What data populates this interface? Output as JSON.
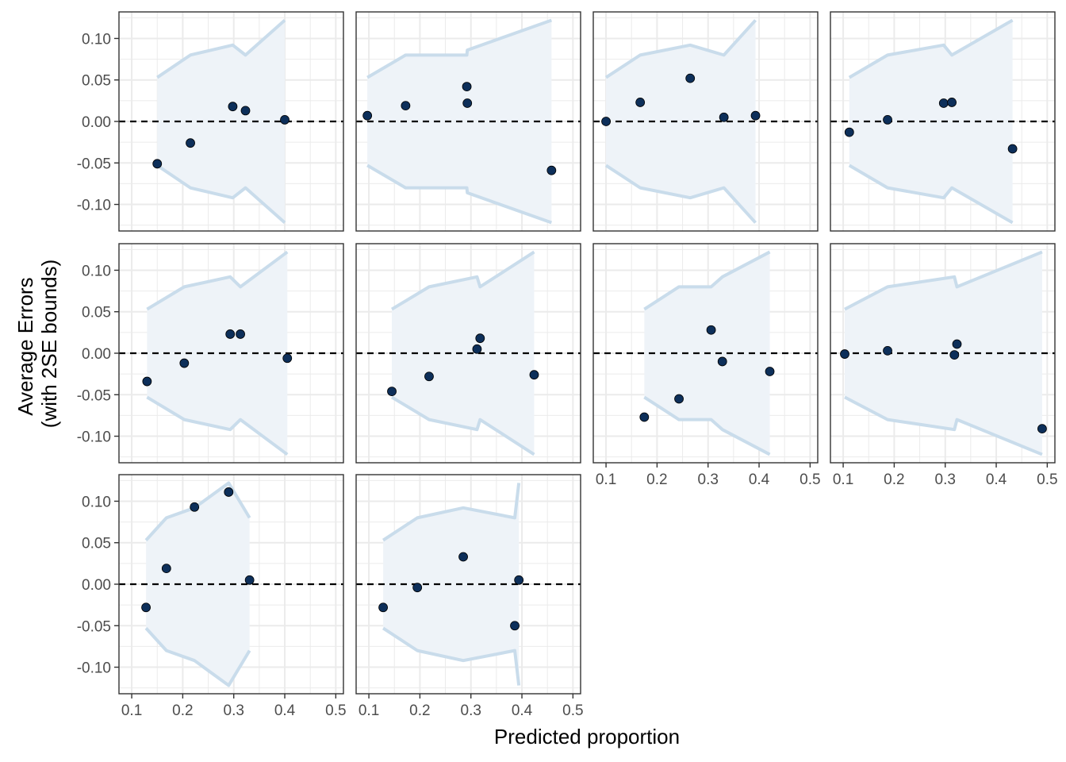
{
  "chart_data": {
    "type": "scatter",
    "xlabel": "Predicted proportion",
    "ylabel": [
      "Average Errors",
      "(with 2SE bounds)"
    ],
    "xlim": [
      0.075,
      0.515
    ],
    "ylim": [
      -0.132,
      0.132
    ],
    "x_ticks": [
      0.1,
      0.2,
      0.3,
      0.4,
      0.5
    ],
    "x_tick_labels": [
      "0.1",
      "0.2",
      "0.3",
      "0.4",
      "0.5"
    ],
    "y_ticks": [
      -0.1,
      -0.05,
      0.0,
      0.05,
      0.1
    ],
    "y_tick_labels": [
      "-0.10",
      "-0.05",
      "0.00",
      "0.05",
      "0.10"
    ],
    "reference_line": 0,
    "grid": true,
    "colors": {
      "points": "#0d2f5a",
      "band_line": "#c9dceb",
      "band_fill": "#eef3f8",
      "reference": "#000000",
      "grid": "#ebebeb",
      "panel_border": "#333333"
    },
    "panels": [
      {
        "points": [
          [
            0.15,
            -0.051
          ],
          [
            0.215,
            -0.026
          ],
          [
            0.298,
            0.018
          ],
          [
            0.323,
            0.013
          ],
          [
            0.4,
            0.002
          ]
        ],
        "band": [
          [
            0.15,
            0.053
          ],
          [
            0.215,
            0.08
          ],
          [
            0.298,
            0.092
          ],
          [
            0.323,
            0.08
          ],
          [
            0.4,
            0.122
          ]
        ]
      },
      {
        "points": [
          [
            0.097,
            0.007
          ],
          [
            0.172,
            0.019
          ],
          [
            0.292,
            0.042
          ],
          [
            0.293,
            0.022
          ],
          [
            0.458,
            -0.059
          ]
        ],
        "band": [
          [
            0.097,
            0.053
          ],
          [
            0.172,
            0.08
          ],
          [
            0.292,
            0.08
          ],
          [
            0.293,
            0.086
          ],
          [
            0.458,
            0.122
          ]
        ]
      },
      {
        "points": [
          [
            0.1,
            0.0
          ],
          [
            0.167,
            0.023
          ],
          [
            0.265,
            0.052
          ],
          [
            0.331,
            0.005
          ],
          [
            0.393,
            0.007
          ]
        ],
        "band": [
          [
            0.1,
            0.053
          ],
          [
            0.167,
            0.08
          ],
          [
            0.265,
            0.092
          ],
          [
            0.331,
            0.08
          ],
          [
            0.393,
            0.122
          ]
        ]
      },
      {
        "points": [
          [
            0.112,
            -0.013
          ],
          [
            0.187,
            0.002
          ],
          [
            0.297,
            0.022
          ],
          [
            0.313,
            0.023
          ],
          [
            0.432,
            -0.033
          ]
        ],
        "band": [
          [
            0.112,
            0.053
          ],
          [
            0.187,
            0.08
          ],
          [
            0.297,
            0.092
          ],
          [
            0.313,
            0.08
          ],
          [
            0.432,
            0.122
          ]
        ]
      },
      {
        "points": [
          [
            0.13,
            -0.034
          ],
          [
            0.203,
            -0.012
          ],
          [
            0.293,
            0.023
          ],
          [
            0.313,
            0.023
          ],
          [
            0.405,
            -0.006
          ]
        ],
        "band": [
          [
            0.13,
            0.053
          ],
          [
            0.203,
            0.08
          ],
          [
            0.293,
            0.092
          ],
          [
            0.313,
            0.08
          ],
          [
            0.405,
            0.122
          ]
        ]
      },
      {
        "points": [
          [
            0.145,
            -0.046
          ],
          [
            0.218,
            -0.028
          ],
          [
            0.312,
            0.005
          ],
          [
            0.318,
            0.018
          ],
          [
            0.424,
            -0.026
          ]
        ],
        "band": [
          [
            0.145,
            0.053
          ],
          [
            0.218,
            0.08
          ],
          [
            0.312,
            0.092
          ],
          [
            0.318,
            0.08
          ],
          [
            0.424,
            0.122
          ]
        ]
      },
      {
        "points": [
          [
            0.175,
            -0.077
          ],
          [
            0.243,
            -0.055
          ],
          [
            0.306,
            0.028
          ],
          [
            0.328,
            -0.01
          ],
          [
            0.421,
            -0.022
          ]
        ],
        "band": [
          [
            0.175,
            0.053
          ],
          [
            0.243,
            0.08
          ],
          [
            0.306,
            0.08
          ],
          [
            0.328,
            0.092
          ],
          [
            0.421,
            0.122
          ]
        ]
      },
      {
        "points": [
          [
            0.103,
            -0.001
          ],
          [
            0.187,
            0.003
          ],
          [
            0.318,
            -0.002
          ],
          [
            0.323,
            0.011
          ],
          [
            0.49,
            -0.091
          ]
        ],
        "band": [
          [
            0.103,
            0.053
          ],
          [
            0.187,
            0.08
          ],
          [
            0.318,
            0.092
          ],
          [
            0.323,
            0.08
          ],
          [
            0.49,
            0.122
          ]
        ]
      },
      {
        "points": [
          [
            0.128,
            -0.028
          ],
          [
            0.168,
            0.019
          ],
          [
            0.223,
            0.093
          ],
          [
            0.29,
            0.111
          ],
          [
            0.331,
            0.005
          ]
        ],
        "band": [
          [
            0.128,
            0.053
          ],
          [
            0.168,
            0.08
          ],
          [
            0.223,
            0.092
          ],
          [
            0.29,
            0.122
          ],
          [
            0.331,
            0.08
          ]
        ]
      },
      {
        "points": [
          [
            0.128,
            -0.028
          ],
          [
            0.195,
            -0.004
          ],
          [
            0.285,
            0.033
          ],
          [
            0.386,
            -0.05
          ],
          [
            0.394,
            0.005
          ]
        ],
        "band": [
          [
            0.128,
            0.053
          ],
          [
            0.195,
            0.08
          ],
          [
            0.285,
            0.092
          ],
          [
            0.386,
            0.08
          ],
          [
            0.394,
            0.122
          ]
        ]
      }
    ]
  }
}
